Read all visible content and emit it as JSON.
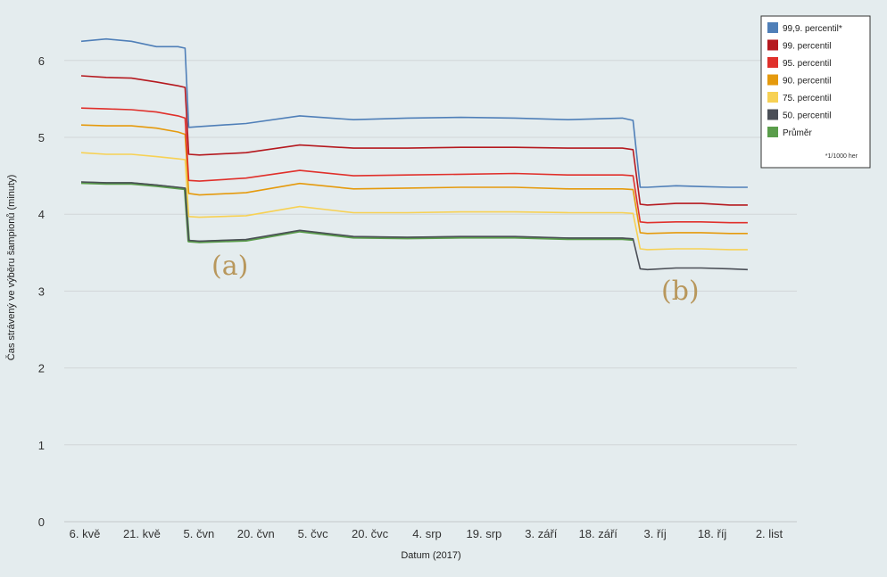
{
  "chart_data": {
    "type": "line",
    "xlabel": "Datum (2017)",
    "ylabel": "Čas strávený ve výběru šampionů (minuty)",
    "ylim": [
      0,
      6.6
    ],
    "yticks": [
      0,
      1,
      2,
      3,
      4,
      5,
      6
    ],
    "x_range_days": 191,
    "x_tick_labels": [
      "6. kvě",
      "21. kvě",
      "5. čvn",
      "20. čvn",
      "5. čvc",
      "20. čvc",
      "4. srp",
      "19. srp",
      "3. září",
      "18. září",
      "3. říj",
      "18. říj",
      "2. list"
    ],
    "grid": true,
    "legend_position": "top-right",
    "legend_note": "*1/1000 her",
    "annotations": [
      "(a)",
      "(b)"
    ],
    "series": [
      {
        "name": "99,9. percentil*",
        "color": "#4f7fb8",
        "segments": [
          {
            "x": [
              "2017-05-05",
              "2017-05-12",
              "2017-05-19",
              "2017-05-26",
              "2017-06-01",
              "2017-06-03"
            ],
            "y": [
              6.25,
              6.28,
              6.25,
              6.18,
              6.18,
              6.16
            ]
          },
          {
            "x": [
              "2017-06-04",
              "2017-06-07",
              "2017-06-20",
              "2017-07-05",
              "2017-07-20",
              "2017-08-04",
              "2017-08-19",
              "2017-09-03",
              "2017-09-18",
              "2017-10-03",
              "2017-10-06"
            ],
            "y": [
              5.13,
              5.14,
              5.18,
              5.28,
              5.23,
              5.25,
              5.26,
              5.25,
              5.23,
              5.25,
              5.22
            ]
          },
          {
            "x": [
              "2017-10-08",
              "2017-10-10",
              "2017-10-18",
              "2017-10-25",
              "2017-11-02",
              "2017-11-07"
            ],
            "y": [
              4.35,
              4.35,
              4.37,
              4.36,
              4.35,
              4.35
            ]
          }
        ]
      },
      {
        "name": "99. percentil",
        "color": "#b5191f",
        "segments": [
          {
            "x": [
              "2017-05-05",
              "2017-05-12",
              "2017-05-19",
              "2017-05-26",
              "2017-06-01",
              "2017-06-03"
            ],
            "y": [
              5.8,
              5.78,
              5.77,
              5.72,
              5.67,
              5.65
            ]
          },
          {
            "x": [
              "2017-06-04",
              "2017-06-07",
              "2017-06-20",
              "2017-07-05",
              "2017-07-20",
              "2017-08-04",
              "2017-08-19",
              "2017-09-03",
              "2017-09-18",
              "2017-10-03",
              "2017-10-06"
            ],
            "y": [
              4.78,
              4.77,
              4.8,
              4.9,
              4.86,
              4.86,
              4.87,
              4.87,
              4.86,
              4.86,
              4.84
            ]
          },
          {
            "x": [
              "2017-10-08",
              "2017-10-10",
              "2017-10-18",
              "2017-10-25",
              "2017-11-02",
              "2017-11-07"
            ],
            "y": [
              4.13,
              4.12,
              4.14,
              4.14,
              4.12,
              4.12
            ]
          }
        ]
      },
      {
        "name": "95. percentil",
        "color": "#e0302b",
        "segments": [
          {
            "x": [
              "2017-05-05",
              "2017-05-12",
              "2017-05-19",
              "2017-05-26",
              "2017-06-01",
              "2017-06-03"
            ],
            "y": [
              5.38,
              5.37,
              5.36,
              5.33,
              5.28,
              5.25
            ]
          },
          {
            "x": [
              "2017-06-04",
              "2017-06-07",
              "2017-06-20",
              "2017-07-05",
              "2017-07-20",
              "2017-08-04",
              "2017-08-19",
              "2017-09-03",
              "2017-09-18",
              "2017-10-03",
              "2017-10-06"
            ],
            "y": [
              4.44,
              4.43,
              4.47,
              4.57,
              4.5,
              4.51,
              4.52,
              4.53,
              4.51,
              4.51,
              4.5
            ]
          },
          {
            "x": [
              "2017-10-08",
              "2017-10-10",
              "2017-10-18",
              "2017-10-25",
              "2017-11-02",
              "2017-11-07"
            ],
            "y": [
              3.9,
              3.89,
              3.9,
              3.9,
              3.89,
              3.89
            ]
          }
        ]
      },
      {
        "name": "90. percentil",
        "color": "#e59a0d",
        "segments": [
          {
            "x": [
              "2017-05-05",
              "2017-05-12",
              "2017-05-19",
              "2017-05-26",
              "2017-06-01",
              "2017-06-03"
            ],
            "y": [
              5.16,
              5.15,
              5.15,
              5.12,
              5.07,
              5.04
            ]
          },
          {
            "x": [
              "2017-06-04",
              "2017-06-07",
              "2017-06-20",
              "2017-07-05",
              "2017-07-20",
              "2017-08-04",
              "2017-08-19",
              "2017-09-03",
              "2017-09-18",
              "2017-10-03",
              "2017-10-06"
            ],
            "y": [
              4.27,
              4.25,
              4.28,
              4.4,
              4.33,
              4.34,
              4.35,
              4.35,
              4.33,
              4.33,
              4.32
            ]
          },
          {
            "x": [
              "2017-10-08",
              "2017-10-10",
              "2017-10-18",
              "2017-10-25",
              "2017-11-02",
              "2017-11-07"
            ],
            "y": [
              3.76,
              3.75,
              3.76,
              3.76,
              3.75,
              3.75
            ]
          }
        ]
      },
      {
        "name": "75. percentil",
        "color": "#f7d154",
        "segments": [
          {
            "x": [
              "2017-05-05",
              "2017-05-12",
              "2017-05-19",
              "2017-05-26",
              "2017-06-01",
              "2017-06-03"
            ],
            "y": [
              4.8,
              4.78,
              4.78,
              4.75,
              4.72,
              4.71
            ]
          },
          {
            "x": [
              "2017-06-04",
              "2017-06-07",
              "2017-06-20",
              "2017-07-05",
              "2017-07-20",
              "2017-08-04",
              "2017-08-19",
              "2017-09-03",
              "2017-09-18",
              "2017-10-03",
              "2017-10-06"
            ],
            "y": [
              3.97,
              3.96,
              3.98,
              4.1,
              4.02,
              4.02,
              4.03,
              4.03,
              4.02,
              4.02,
              4.01
            ]
          },
          {
            "x": [
              "2017-10-08",
              "2017-10-10",
              "2017-10-18",
              "2017-10-25",
              "2017-11-02",
              "2017-11-07"
            ],
            "y": [
              3.55,
              3.54,
              3.55,
              3.55,
              3.54,
              3.54
            ]
          }
        ]
      },
      {
        "name": "50. percentil",
        "color": "#4b4f57",
        "segments": [
          {
            "x": [
              "2017-05-05",
              "2017-05-12",
              "2017-05-19",
              "2017-05-26",
              "2017-06-01",
              "2017-06-03"
            ],
            "y": [
              4.42,
              4.41,
              4.41,
              4.38,
              4.35,
              4.34
            ]
          },
          {
            "x": [
              "2017-06-04",
              "2017-06-07",
              "2017-06-20",
              "2017-07-05",
              "2017-07-20",
              "2017-08-04",
              "2017-08-19",
              "2017-09-03",
              "2017-09-18",
              "2017-10-03",
              "2017-10-06"
            ],
            "y": [
              3.66,
              3.65,
              3.67,
              3.79,
              3.71,
              3.7,
              3.71,
              3.71,
              3.69,
              3.69,
              3.68
            ]
          },
          {
            "x": [
              "2017-10-08",
              "2017-10-10",
              "2017-10-18",
              "2017-10-25",
              "2017-11-02",
              "2017-11-07"
            ],
            "y": [
              3.29,
              3.28,
              3.3,
              3.3,
              3.29,
              3.28
            ]
          }
        ]
      },
      {
        "name": "Průměr",
        "color": "#5a9d4b",
        "segments": [
          {
            "x": [
              "2017-05-05",
              "2017-05-12",
              "2017-05-19",
              "2017-05-26",
              "2017-06-01",
              "2017-06-03"
            ],
            "y": [
              4.41,
              4.4,
              4.4,
              4.37,
              4.34,
              4.33
            ]
          },
          {
            "x": [
              "2017-06-04",
              "2017-06-07",
              "2017-06-20",
              "2017-07-05",
              "2017-07-20",
              "2017-08-04",
              "2017-08-19",
              "2017-09-03",
              "2017-09-18",
              "2017-10-03",
              "2017-10-06"
            ],
            "y": [
              3.65,
              3.64,
              3.66,
              3.78,
              3.7,
              3.69,
              3.7,
              3.7,
              3.68,
              3.68,
              3.67
            ]
          }
        ]
      }
    ]
  }
}
